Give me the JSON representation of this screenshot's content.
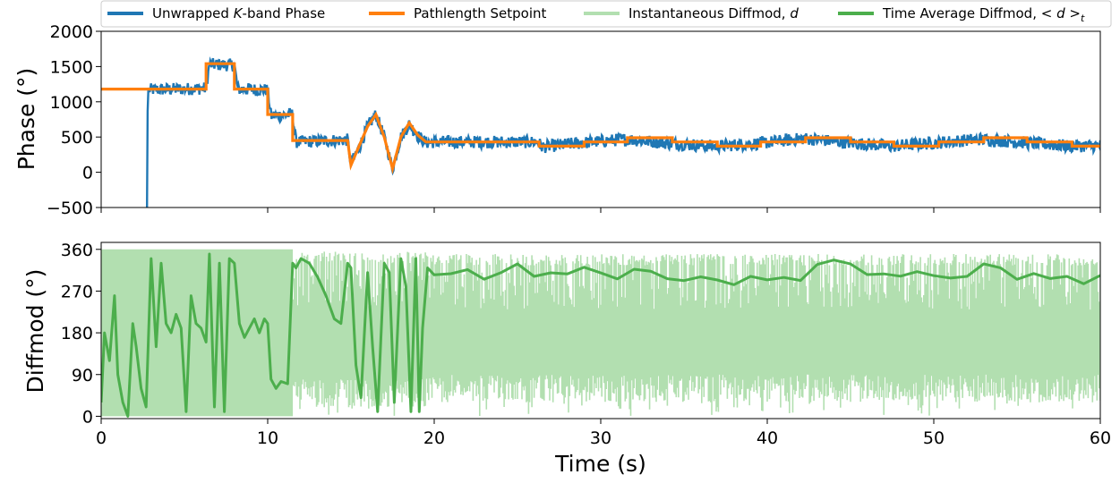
{
  "chart_data": [
    {
      "type": "line",
      "panel": "top",
      "ylabel": "Phase (°)",
      "xlim": [
        0,
        60
      ],
      "ylim": [
        -500,
        2000
      ],
      "yticks": [
        "−500",
        "0",
        "500",
        "1000",
        "1500",
        "2000"
      ],
      "ytick_values": [
        -500,
        0,
        500,
        1000,
        1500,
        2000
      ],
      "grid": false,
      "series": [
        {
          "name": "Unwrapped K-band Phase",
          "color": "#1f77b4",
          "noise_amplitude": 90,
          "x": [
            2.75,
            2.8,
            6.3,
            6.5,
            8.0,
            8.2,
            10.0,
            10.2,
            11.5,
            11.7,
            14.8,
            15.0,
            15.5,
            16.0,
            16.5,
            17.0,
            17.5,
            18.0,
            18.5,
            19.0,
            19.5,
            20,
            26.2,
            26.5,
            29,
            31.5,
            34.2,
            36.8,
            39.5,
            42.2,
            44.8,
            47.5,
            50.2,
            52.8,
            55.5,
            58.2,
            60
          ],
          "y": [
            -500,
            1170,
            1190,
            1530,
            1520,
            1180,
            1170,
            800,
            820,
            430,
            460,
            120,
            350,
            650,
            820,
            500,
            50,
            500,
            680,
            520,
            420,
            430,
            430,
            360,
            420,
            470,
            410,
            370,
            410,
            480,
            420,
            370,
            420,
            470,
            420,
            370,
            380
          ]
        },
        {
          "name": "Pathlength Setpoint",
          "color": "#ff7f0e",
          "x": [
            0,
            6.3,
            6.3,
            8.0,
            8.0,
            10.0,
            10.0,
            11.5,
            11.5,
            14.8,
            15.0,
            15.5,
            16.0,
            16.5,
            17.0,
            17.5,
            18.0,
            18.5,
            19.0,
            19.5,
            26.3,
            26.3,
            29.0,
            29.0,
            31.6,
            31.6,
            34.3,
            34.3,
            37.0,
            37.0,
            39.6,
            39.6,
            42.3,
            42.3,
            45.0,
            45.0,
            47.6,
            47.6,
            50.3,
            50.3,
            53.0,
            53.0,
            55.6,
            55.6,
            58.3,
            58.3,
            60
          ],
          "y": [
            1180,
            1180,
            1540,
            1540,
            1180,
            1180,
            820,
            820,
            450,
            450,
            100,
            380,
            650,
            820,
            500,
            50,
            500,
            700,
            530,
            430,
            430,
            370,
            370,
            430,
            430,
            490,
            490,
            430,
            430,
            370,
            370,
            430,
            430,
            490,
            490,
            430,
            430,
            370,
            370,
            430,
            430,
            490,
            490,
            430,
            430,
            370,
            370
          ]
        }
      ]
    },
    {
      "type": "line",
      "panel": "bottom",
      "xlabel": "Time (s)",
      "ylabel": "Diffmod (°)",
      "xlim": [
        0,
        60
      ],
      "ylim": [
        -5,
        375
      ],
      "xticks": [
        "0",
        "10",
        "20",
        "30",
        "40",
        "50",
        "60"
      ],
      "xtick_values": [
        0,
        10,
        20,
        30,
        40,
        50,
        60
      ],
      "yticks": [
        "0",
        "90",
        "180",
        "270",
        "360"
      ],
      "ytick_values": [
        0,
        90,
        180,
        270,
        360
      ],
      "grid": false,
      "series": [
        {
          "name": "Instantaneous Diffmod, d",
          "color": "#b2dfb0",
          "segments": [
            {
              "x": [
                0,
                11.5
              ],
              "low": 0,
              "high": 360
            },
            {
              "x": [
                11.5,
                19.5
              ],
              "low": 20,
              "high": 355
            },
            {
              "x": [
                19.5,
                60
              ],
              "low": 30,
              "high": 350
            }
          ]
        },
        {
          "name": "Time Average Diffmod, <d>_t",
          "color": "#4cae4c",
          "x": [
            0,
            0.2,
            0.5,
            0.8,
            1.0,
            1.3,
            1.6,
            1.9,
            2.1,
            2.4,
            2.7,
            3.0,
            3.3,
            3.6,
            3.9,
            4.2,
            4.5,
            4.8,
            5.1,
            5.4,
            5.7,
            6.0,
            6.3,
            6.5,
            6.8,
            7.1,
            7.4,
            7.7,
            8.0,
            8.3,
            8.6,
            8.9,
            9.2,
            9.5,
            9.8,
            10.0,
            10.2,
            10.5,
            10.8,
            11.2,
            11.5,
            11.7,
            12.0,
            12.5,
            13.0,
            13.5,
            14.0,
            14.4,
            14.8,
            15.0,
            15.3,
            15.6,
            16.0,
            16.3,
            16.6,
            17.0,
            17.3,
            17.6,
            18.0,
            18.3,
            18.6,
            18.9,
            19.1,
            19.3,
            19.6,
            20,
            21,
            22,
            23,
            24,
            25,
            26,
            27,
            28,
            29,
            30,
            31,
            32,
            33,
            34,
            35,
            36,
            37,
            38,
            39,
            40,
            41,
            42,
            43,
            44,
            45,
            46,
            47,
            48,
            49,
            50,
            51,
            52,
            53,
            54,
            55,
            56,
            57,
            58,
            59,
            60
          ],
          "y": [
            30,
            180,
            120,
            260,
            90,
            30,
            0,
            200,
            150,
            60,
            20,
            340,
            150,
            330,
            200,
            180,
            220,
            190,
            10,
            260,
            200,
            190,
            160,
            350,
            20,
            330,
            10,
            340,
            330,
            200,
            170,
            190,
            210,
            180,
            210,
            200,
            80,
            60,
            75,
            70,
            330,
            320,
            340,
            330,
            300,
            260,
            210,
            200,
            330,
            320,
            110,
            40,
            310,
            150,
            10,
            330,
            310,
            30,
            340,
            280,
            10,
            340,
            10,
            190,
            320,
            305,
            310,
            320,
            300,
            310,
            325,
            300,
            305,
            310,
            320,
            305,
            300,
            315,
            310,
            300,
            290,
            300,
            290,
            285,
            300,
            295,
            300,
            290,
            330,
            335,
            330,
            310,
            305,
            300,
            310,
            305,
            295,
            300,
            325,
            320,
            300,
            310,
            295,
            305,
            290,
            300
          ]
        }
      ]
    }
  ],
  "legend": {
    "placement": "top",
    "entries": [
      {
        "label": "Unwrapped ",
        "label_italic": "K",
        "label_tail": "-band Phase",
        "color": "#1f77b4"
      },
      {
        "label": "Pathlength Setpoint",
        "label_italic": "",
        "label_tail": "",
        "color": "#ff7f0e"
      },
      {
        "label": "Instantaneous Diffmod, ",
        "label_italic": "d",
        "label_tail": "",
        "color": "#b2dfb0"
      },
      {
        "label": "Time Average Diffmod, ",
        "label_italic": "< d >",
        "label_tail": "t",
        "color": "#4cae4c"
      }
    ]
  }
}
